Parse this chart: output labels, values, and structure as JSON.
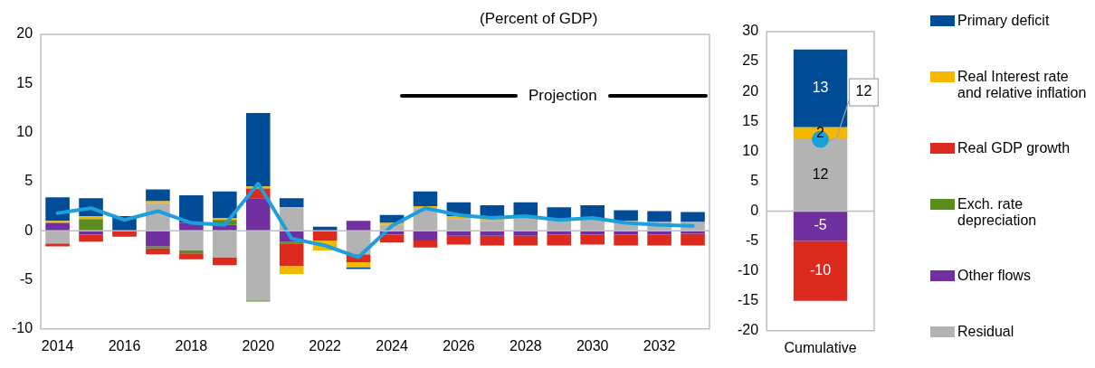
{
  "chart_data": [
    {
      "type": "bar",
      "subtitle": "(Percent of GDP)",
      "stacked": true,
      "grid": false,
      "annotations": [
        "Projection"
      ],
      "ref_lines": [
        {
          "axis": "y",
          "value": 0,
          "color": "#bfbfbf"
        }
      ],
      "categories": [
        "2014",
        null,
        "2016",
        null,
        "2018",
        null,
        "2020",
        null,
        "2022",
        null,
        "2024",
        null,
        "2026",
        null,
        "2028",
        null,
        "2030",
        null,
        "2032",
        null
      ],
      "ylim": [
        -10,
        20
      ],
      "yticks": [
        -10,
        -5,
        0,
        5,
        10,
        15,
        20
      ],
      "series": [
        {
          "color": "#b3b3b3",
          "values": [
            -1.3,
            0,
            null,
            2.8,
            -2.0,
            -2.7,
            -7.1,
            2.4,
            null,
            -2.4,
            0.6,
            2.3,
            1.2,
            1.0,
            1.3,
            1.2,
            1.3,
            1.0,
            0.9,
            0.9
          ]
        },
        {
          "color": "#7030a0",
          "values": [
            0.8,
            -0.4,
            0,
            -1.6,
            0.8,
            0.6,
            3.3,
            -1.1,
            0,
            1.0,
            -0.4,
            -1.0,
            -0.5,
            -0.5,
            -0.5,
            -0.4,
            -0.4,
            -0.4,
            -0.4,
            -0.3
          ]
        },
        {
          "color": "#5b8c1e",
          "values": [
            0,
            1.2,
            0,
            -0.2,
            -0.3,
            0.5,
            -0.1,
            -0.2,
            0,
            0,
            0,
            0,
            0,
            0,
            0,
            0,
            0,
            0,
            0,
            0
          ]
        },
        {
          "color": "#dc2a1f",
          "values": [
            -0.3,
            -0.7,
            -0.6,
            -0.6,
            -0.6,
            -0.8,
            1.0,
            -2.3,
            -1.0,
            -0.8,
            -0.8,
            -0.7,
            -0.9,
            -1.0,
            -1.0,
            -1.1,
            -1.0,
            -1.1,
            -1.1,
            -1.2
          ]
        },
        {
          "color": "#f5b800",
          "values": [
            0.2,
            0.3,
            null,
            0.2,
            0,
            0.2,
            0.2,
            -0.8,
            -1.0,
            -0.5,
            0.2,
            0.2,
            0.3,
            0.2,
            null,
            0,
            0,
            0,
            0,
            0
          ]
        },
        {
          "color": "#004c97",
          "values": [
            2.4,
            1.8,
            1.5,
            1.2,
            2.8,
            2.7,
            7.5,
            0.9,
            0.4,
            -0.2,
            0.8,
            1.5,
            1.4,
            1.4,
            1.6,
            1.2,
            1.3,
            1.1,
            1.1,
            1.0
          ]
        },
        {
          "type": "line",
          "color": "#1ca0dc",
          "values": [
            1.8,
            2.3,
            1.1,
            2.0,
            0.8,
            0.6,
            4.8,
            -0.8,
            -1.5,
            -2.7,
            0.5,
            2.3,
            1.6,
            1.3,
            1.5,
            1.1,
            1.3,
            0.8,
            0.6,
            0.5
          ]
        }
      ]
    },
    {
      "type": "bar",
      "stacked": true,
      "legend": "right",
      "grid": false,
      "data_labels": true,
      "marker": "circle",
      "ref_lines": [
        {
          "axis": "y",
          "value": 0,
          "color": "#bfbfbf"
        }
      ],
      "categories": [
        "Cumulative"
      ],
      "ylim": [
        -20,
        30
      ],
      "yticks": [
        -20,
        -15,
        -10,
        -5,
        0,
        5,
        10,
        15,
        20,
        25,
        30
      ],
      "series": [
        {
          "name": "Residual",
          "color": "#b3b3b3",
          "values": [
            12
          ]
        },
        {
          "name": "Other flows",
          "color": "#7030a0",
          "values": [
            -5
          ]
        },
        {
          "name": "Exch. rate depreciation",
          "color": "#5b8c1e",
          "values": [
            null
          ]
        },
        {
          "name": "Real GDP growth",
          "color": "#dc2a1f",
          "values": [
            -10
          ]
        },
        {
          "name": "Real Interest rate and relative inflation",
          "color": "#f5b800",
          "values": [
            2
          ]
        },
        {
          "name": "Primary deficit",
          "color": "#004c97",
          "values": [
            13
          ]
        },
        {
          "type": "scatter",
          "color": "#1ca0dc",
          "x": [
            "Cumulative"
          ],
          "values": [
            12
          ],
          "value_labels": [
            "12"
          ]
        }
      ]
    }
  ]
}
